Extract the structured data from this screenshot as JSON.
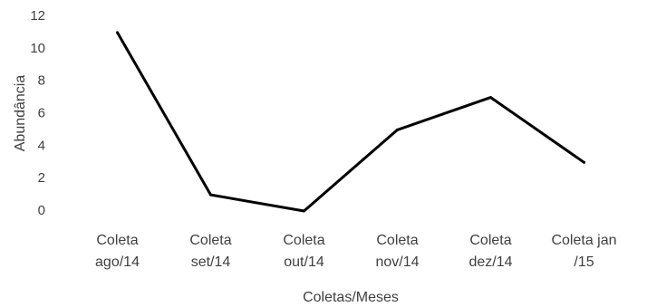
{
  "chart_data": {
    "type": "line",
    "title": "",
    "xlabel": "Coletas/Meses",
    "ylabel": "Abundância",
    "categories": [
      "Coleta ago/14",
      "Coleta set/14",
      "Coleta out/14",
      "Coleta nov/14",
      "Coleta dez/14",
      "Coleta jan /15"
    ],
    "category_lines": [
      [
        "Coleta",
        "ago/14"
      ],
      [
        "Coleta",
        "set/14"
      ],
      [
        "Coleta",
        "out/14"
      ],
      [
        "Coleta",
        "nov/14"
      ],
      [
        "Coleta",
        "dez/14"
      ],
      [
        "Coleta jan",
        "/15"
      ]
    ],
    "series": [
      {
        "values": [
          11,
          1,
          0,
          5,
          7,
          3
        ]
      }
    ],
    "ylim": [
      0,
      12
    ],
    "yticks": [
      "0",
      "2",
      "4",
      "6",
      "8",
      "10",
      "12"
    ],
    "grid": false,
    "legend": "none",
    "line_color": "#000000"
  }
}
